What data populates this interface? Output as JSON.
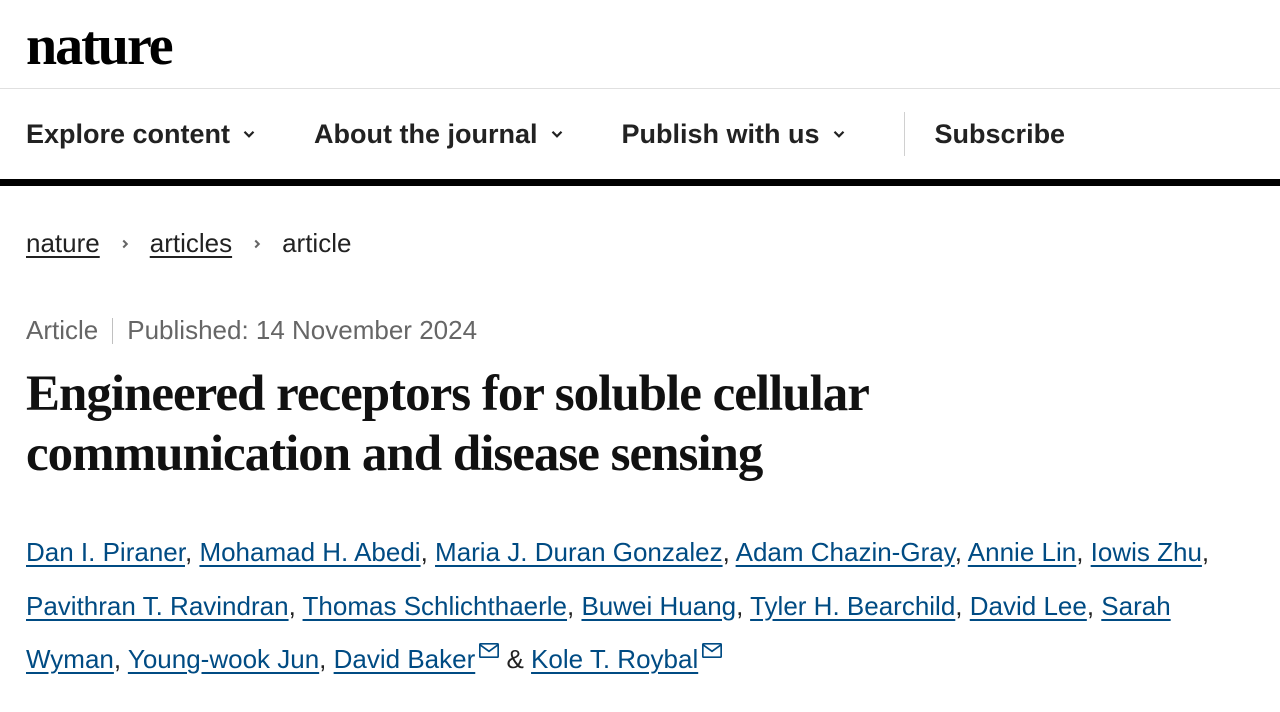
{
  "logo": "nature",
  "nav": {
    "items": [
      {
        "label": "Explore content",
        "hasDropdown": true
      },
      {
        "label": "About the journal",
        "hasDropdown": true
      },
      {
        "label": "Publish with us",
        "hasDropdown": true
      }
    ],
    "subscribe": "Subscribe"
  },
  "breadcrumb": {
    "items": [
      {
        "label": "nature",
        "link": true
      },
      {
        "label": "articles",
        "link": true
      },
      {
        "label": "article",
        "link": false
      }
    ]
  },
  "meta": {
    "type": "Article",
    "published": "Published: 14 November 2024"
  },
  "title": "Engineered receptors for soluble cellular communication and disease sensing",
  "authors": [
    {
      "name": "Dan I. Piraner",
      "mail": false
    },
    {
      "name": "Mohamad H. Abedi",
      "mail": false
    },
    {
      "name": "Maria J. Duran Gonzalez",
      "mail": false
    },
    {
      "name": "Adam Chazin-Gray",
      "mail": false
    },
    {
      "name": "Annie Lin",
      "mail": false
    },
    {
      "name": "Iowis Zhu",
      "mail": false
    },
    {
      "name": "Pavithran T. Ravindran",
      "mail": false
    },
    {
      "name": "Thomas Schlichthaerle",
      "mail": false
    },
    {
      "name": "Buwei Huang",
      "mail": false
    },
    {
      "name": "Tyler H. Bearchild",
      "mail": false
    },
    {
      "name": "David Lee",
      "mail": false
    },
    {
      "name": "Sarah Wyman",
      "mail": false
    },
    {
      "name": "Young-wook Jun",
      "mail": false
    },
    {
      "name": "David Baker",
      "mail": true
    },
    {
      "name": "Kole T. Roybal",
      "mail": true
    }
  ],
  "colors": {
    "link": "#004b83",
    "text": "#222222",
    "muted": "#666666",
    "rule": "#000000"
  }
}
